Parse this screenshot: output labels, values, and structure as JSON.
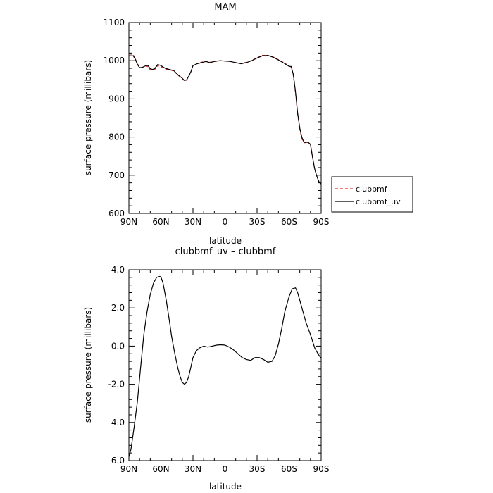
{
  "chart_data": [
    {
      "type": "line",
      "title": "MAM",
      "xlabel": "latitude",
      "ylabel": "surface pressure (millibars)",
      "xticks": [
        "90N",
        "60N",
        "30N",
        "0",
        "30S",
        "60S",
        "90S"
      ],
      "xlim": [
        90,
        -90
      ],
      "ylim": [
        600,
        1100
      ],
      "yticks": [
        "600",
        "700",
        "800",
        "900",
        "1000",
        "1100"
      ],
      "legend_position": "right-outside",
      "series": [
        {
          "name": "clubbmf",
          "color": "#e03030",
          "dash": "dashed",
          "x": [
            90,
            86,
            84,
            82,
            80,
            78,
            74,
            72,
            70,
            68,
            66,
            63,
            60,
            56,
            52,
            48,
            44,
            40,
            38,
            36,
            34,
            32,
            30,
            26,
            22,
            18,
            14,
            10,
            5,
            0,
            -5,
            -10,
            -15,
            -20,
            -25,
            -30,
            -35,
            -40,
            -45,
            -50,
            -55,
            -60,
            -62,
            -64,
            -66,
            -68,
            -70,
            -72,
            -74,
            -76,
            -78,
            -80,
            -82,
            -84,
            -86,
            -88,
            -90
          ],
          "y": [
            1018,
            1016,
            1005,
            992,
            984,
            982,
            986,
            984,
            976,
            974,
            976,
            987,
            984,
            978,
            976,
            973,
            962,
            953,
            947,
            949,
            958,
            970,
            987,
            993,
            996,
            999,
            996,
            998,
            1000,
            999,
            998,
            995,
            993,
            996,
            1001,
            1008,
            1014,
            1014,
            1010,
            1003,
            995,
            986,
            983,
            960,
            915,
            860,
            820,
            795,
            785,
            785,
            786,
            780,
            745,
            716,
            698,
            683,
            678
          ]
        },
        {
          "name": "clubbmf_uv",
          "color": "#000000",
          "dash": "solid",
          "x": [
            90,
            86,
            84,
            82,
            80,
            78,
            74,
            72,
            70,
            68,
            66,
            63,
            60,
            56,
            52,
            48,
            44,
            40,
            38,
            36,
            34,
            32,
            30,
            26,
            22,
            18,
            14,
            10,
            5,
            0,
            -5,
            -10,
            -15,
            -20,
            -25,
            -30,
            -35,
            -40,
            -45,
            -50,
            -55,
            -60,
            -62,
            -64,
            -66,
            -68,
            -70,
            -72,
            -74,
            -76,
            -78,
            -80,
            -82,
            -84,
            -86,
            -88,
            -90
          ],
          "y": [
            1013,
            1013,
            1004,
            990,
            982,
            982,
            987,
            987,
            979,
            977,
            979,
            990,
            987,
            980,
            977,
            974,
            963,
            954,
            948,
            950,
            959,
            971,
            987,
            992,
            995,
            998,
            995,
            998,
            1000,
            999,
            998,
            995,
            992,
            995,
            1000,
            1007,
            1013,
            1014,
            1009,
            1002,
            994,
            985,
            985,
            963,
            918,
            863,
            823,
            799,
            786,
            786,
            786,
            781,
            746,
            716,
            697,
            682,
            677
          ]
        }
      ]
    },
    {
      "type": "line",
      "title": "clubbmf_uv – clubbmf",
      "xlabel": "latitude",
      "ylabel": "surface pressure (millibars)",
      "xticks": [
        "90N",
        "60N",
        "30N",
        "0",
        "30S",
        "60S",
        "90S"
      ],
      "xlim": [
        90,
        -90
      ],
      "ylim": [
        -6.0,
        4.0
      ],
      "yticks": [
        "-6.0",
        "-4.0",
        "-2.0",
        "0.0",
        "2.0",
        "4.0"
      ],
      "series": [
        {
          "color": "#000000",
          "dash": "solid",
          "x": [
            90,
            88,
            85,
            82,
            79,
            76,
            73,
            70,
            67,
            64,
            61,
            60,
            58,
            55,
            52,
            50,
            47,
            44,
            42,
            40,
            38,
            36,
            34,
            32,
            30,
            27,
            24,
            20,
            16,
            12,
            8,
            4,
            0,
            -4,
            -8,
            -12,
            -16,
            -20,
            -24,
            -28,
            -32,
            -36,
            -40,
            -44,
            -47,
            -50,
            -53,
            -56,
            -60,
            -63,
            -66,
            -68,
            -70,
            -73,
            -76,
            -80,
            -84,
            -87,
            -90
          ],
          "y": [
            -5.8,
            -5.4,
            -4.2,
            -2.9,
            -1.1,
            0.6,
            1.8,
            2.7,
            3.3,
            3.6,
            3.65,
            3.62,
            3.3,
            2.4,
            1.3,
            0.5,
            -0.4,
            -1.2,
            -1.6,
            -1.9,
            -2.0,
            -1.9,
            -1.6,
            -1.1,
            -0.6,
            -0.25,
            -0.1,
            0.0,
            -0.05,
            0.0,
            0.05,
            0.07,
            0.05,
            -0.05,
            -0.2,
            -0.4,
            -0.6,
            -0.7,
            -0.75,
            -0.6,
            -0.6,
            -0.7,
            -0.85,
            -0.8,
            -0.5,
            0.1,
            0.9,
            1.8,
            2.6,
            3.0,
            3.05,
            2.8,
            2.4,
            1.8,
            1.2,
            0.6,
            -0.1,
            -0.4,
            -0.65
          ]
        }
      ]
    }
  ]
}
